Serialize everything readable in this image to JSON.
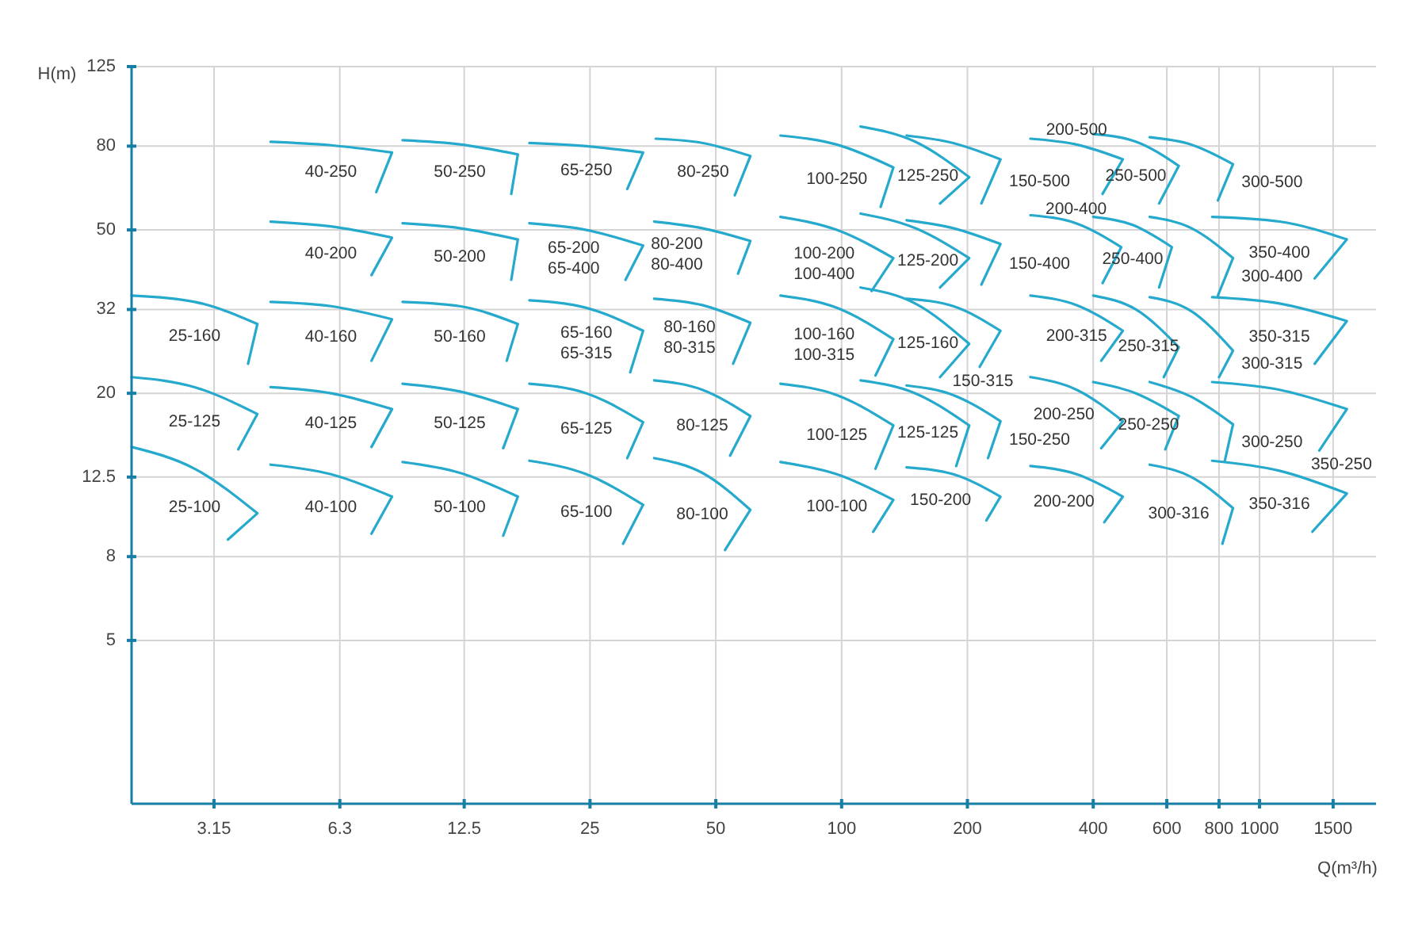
{
  "chart_data": {
    "type": "line",
    "xlabel": "Q(m³/h)",
    "ylabel": "H(m)",
    "log": "xy",
    "grid": true,
    "color": "#25a9cc",
    "xlim": [
      2,
      1900
    ],
    "xticks": [
      3.15,
      6.3,
      12.5,
      25,
      50,
      100,
      200,
      400,
      600,
      800,
      1000,
      1500
    ],
    "ylim": [
      2,
      125
    ],
    "yticks": [
      5,
      8,
      12.5,
      20,
      32,
      50,
      80,
      125
    ],
    "series": [
      {
        "name": "40-250",
        "x": [
          4.3,
          6.0,
          8.4,
          7.7
        ],
        "values": [
          82.0,
          80.4,
          77.2,
          61.8
        ]
      },
      {
        "name": "50-250",
        "x": [
          8.9,
          12.2,
          16.8,
          16.2
        ],
        "values": [
          82.7,
          80.8,
          76.4,
          61.2
        ]
      },
      {
        "name": "65-250",
        "x": [
          17.9,
          24.5,
          33.5,
          30.7
        ],
        "values": [
          81.4,
          80,
          77.2,
          62.9
        ]
      },
      {
        "name": "80-250",
        "x": [
          35.9,
          46.6,
          60.5,
          55.5
        ],
        "values": [
          83.4,
          81.4,
          75.7,
          60.7
        ]
      },
      {
        "name": "100-250",
        "x": [
          71.4,
          97.4,
          133,
          124
        ],
        "values": [
          84.9,
          80.7,
          71.0,
          56.9
        ]
      },
      {
        "name": "125-250",
        "x": [
          111,
          150,
          202,
          172
        ],
        "values": [
          89.3,
          82.0,
          67.2,
          58.0
        ]
      },
      {
        "name": "150-500",
        "x": [
          143,
          185,
          240,
          216
        ],
        "values": [
          84.9,
          81.4,
          74.3,
          58.0
        ]
      },
      {
        "name": "200-500",
        "x": [
          283,
          365,
          471,
          421
        ],
        "values": [
          83.4,
          80.7,
          74.3,
          61.2
        ]
      },
      {
        "name": "250-500",
        "x": [
          400,
          506,
          641,
          575
        ],
        "values": [
          85.6,
          82.0,
          71.6,
          58.0
        ]
      },
      {
        "name": "300-500",
        "x": [
          546,
          687,
          864,
          795
        ],
        "values": [
          84.1,
          80.7,
          72.3,
          59.0
        ]
      },
      {
        "name": "40-200",
        "x": [
          4.3,
          6.0,
          8.4,
          7.5
        ],
        "values": [
          52.4,
          51.0,
          47.9,
          38.8
        ]
      },
      {
        "name": "50-200",
        "x": [
          8.9,
          12.2,
          16.8,
          16.2
        ],
        "values": [
          51.9,
          50.5,
          47.4,
          37.8
        ]
      },
      {
        "name": "65-200\n65-400",
        "x": [
          17.9,
          24.5,
          33.5,
          30.4
        ],
        "values": [
          51.9,
          50,
          45.8,
          37.8
        ]
      },
      {
        "name": "80-200\n80-400",
        "x": [
          35.6,
          46.4,
          60.5,
          56.5
        ],
        "values": [
          52.4,
          50.5,
          47.0,
          39.1
        ]
      },
      {
        "name": "100-200\n100-400",
        "x": [
          71.4,
          97.4,
          133,
          118
        ],
        "values": [
          53.8,
          50,
          42.7,
          35.5
        ]
      },
      {
        "name": "125-200",
        "x": [
          111,
          150,
          202,
          172
        ],
        "values": [
          54.8,
          50.5,
          42.7,
          36.2
        ]
      },
      {
        "name": "150-400",
        "x": [
          143,
          185,
          240,
          216
        ],
        "values": [
          52.8,
          50.5,
          46.2,
          36.8
        ]
      },
      {
        "name": "200-400",
        "x": [
          283,
          364,
          467,
          421
        ],
        "values": [
          54.3,
          51.9,
          45.4,
          37.1
        ]
      },
      {
        "name": "250-400",
        "x": [
          400,
          497,
          617,
          575
        ],
        "values": [
          53.8,
          51.4,
          45.4,
          36.2
        ]
      },
      {
        "name": "300-400",
        "x": [
          546,
          687,
          864,
          795
        ],
        "values": [
          53.8,
          50.5,
          42.7,
          34.6
        ]
      },
      {
        "name": "350-400",
        "x": [
          770,
          1116,
          1618,
          1355
        ],
        "values": [
          53.8,
          52.4,
          47.4,
          38.1
        ]
      },
      {
        "name": "25-160",
        "x": [
          2.0,
          2.83,
          4.0,
          3.8
        ],
        "values": [
          34.6,
          33.4,
          29.5,
          23.6
        ]
      },
      {
        "name": "40-160",
        "x": [
          4.3,
          6.0,
          8.4,
          7.5
        ],
        "values": [
          33.4,
          32.6,
          30.3,
          24.0
        ]
      },
      {
        "name": "50-160",
        "x": [
          8.9,
          12.2,
          16.8,
          15.8
        ],
        "values": [
          33.4,
          32.6,
          29.5,
          24.0
        ]
      },
      {
        "name": "65-160\n65-315",
        "x": [
          17.9,
          24.5,
          33.5,
          31.2
        ],
        "values": [
          33.7,
          32.3,
          28.4,
          22.5
        ]
      },
      {
        "name": "80-160\n80-315",
        "x": [
          35.6,
          46.4,
          60.5,
          55
        ],
        "values": [
          34.0,
          32.8,
          29.7,
          23.6
        ]
      },
      {
        "name": "100-160\n100-315",
        "x": [
          71.4,
          97.4,
          133,
          120.5
        ],
        "values": [
          34.6,
          32.3,
          27.1,
          22.1
        ]
      },
      {
        "name": "125-160",
        "x": [
          111,
          150,
          202,
          172
        ],
        "values": [
          36.2,
          33.1,
          26.4,
          21.9
        ]
      },
      {
        "name": "150-315",
        "x": [
          143,
          185,
          240,
          214
        ],
        "values": [
          34.0,
          32.6,
          28.4,
          23.2
        ]
      },
      {
        "name": "200-315",
        "x": [
          283,
          365,
          471,
          418
        ],
        "values": [
          34.6,
          32.8,
          28.4,
          24.0
        ]
      },
      {
        "name": "250-315",
        "x": [
          400,
          506,
          641,
          590
        ],
        "values": [
          34.6,
          32,
          25.9,
          21.9
        ]
      },
      {
        "name": "300-315",
        "x": [
          546,
          687,
          864,
          800
        ],
        "values": [
          34.3,
          31.7,
          25.4,
          21.9
        ]
      },
      {
        "name": "350-315",
        "x": [
          770,
          1116,
          1618,
          1355
        ],
        "values": [
          34.3,
          33.1,
          30.0,
          23.6
        ]
      },
      {
        "name": "25-125",
        "x": [
          2.0,
          2.83,
          4.0,
          3.6
        ],
        "values": [
          21.9,
          20.7,
          17.8,
          14.6
        ]
      },
      {
        "name": "40-125",
        "x": [
          4.3,
          6.0,
          8.4,
          7.5
        ],
        "values": [
          20.7,
          20,
          18.3,
          14.8
        ]
      },
      {
        "name": "50-125",
        "x": [
          8.9,
          12.2,
          16.8,
          15.5
        ],
        "values": [
          21.1,
          20.2,
          18.3,
          14.7
        ]
      },
      {
        "name": "65-125",
        "x": [
          17.9,
          24.5,
          33.5,
          30.7
        ],
        "values": [
          21.1,
          20,
          17.0,
          13.9
        ]
      },
      {
        "name": "80-125",
        "x": [
          35.6,
          46.4,
          60.5,
          54.1
        ],
        "values": [
          21.5,
          20.4,
          17.6,
          14.1
        ]
      },
      {
        "name": "100-125",
        "x": [
          71.4,
          97.4,
          133,
          120.5
        ],
        "values": [
          21.1,
          19.8,
          16.7,
          13.1
        ]
      },
      {
        "name": "125-125",
        "x": [
          111,
          150,
          202,
          188
        ],
        "values": [
          21.5,
          20,
          16.7,
          13.3
        ]
      },
      {
        "name": "150-250",
        "x": [
          143,
          185,
          240,
          224
        ],
        "values": [
          20.9,
          19.8,
          17.1,
          13.9
        ]
      },
      {
        "name": "200-250",
        "x": [
          283,
          365,
          471,
          418
        ],
        "values": [
          21.9,
          20.4,
          17.1,
          14.7
        ]
      },
      {
        "name": "250-250",
        "x": [
          400,
          506,
          641,
          595
        ],
        "values": [
          21.3,
          20,
          17.6,
          14.6
        ]
      },
      {
        "name": "300-250",
        "x": [
          546,
          687,
          864,
          826
        ],
        "values": [
          21.3,
          19.6,
          16.8,
          13.7
        ]
      },
      {
        "name": "350-250",
        "x": [
          770,
          1116,
          1618,
          1390
        ],
        "values": [
          21.3,
          20.4,
          18.3,
          14.5
        ]
      },
      {
        "name": "25-100",
        "x": [
          2.0,
          2.83,
          4.0,
          3.4
        ],
        "values": [
          14.8,
          13.1,
          10.2,
          8.8
        ]
      },
      {
        "name": "40-100",
        "x": [
          4.3,
          6.0,
          8.4,
          7.5
        ],
        "values": [
          13.4,
          12.7,
          11.2,
          9.1
        ]
      },
      {
        "name": "50-100",
        "x": [
          8.9,
          12.2,
          16.8,
          15.5
        ],
        "values": [
          13.6,
          12.8,
          11.2,
          9.0
        ]
      },
      {
        "name": "65-100",
        "x": [
          17.9,
          24.5,
          33.5,
          30
        ],
        "values": [
          13.7,
          12.7,
          10.7,
          8.6
        ]
      },
      {
        "name": "80-100",
        "x": [
          35.6,
          46.4,
          60.5,
          52.6
        ],
        "values": [
          13.9,
          12.8,
          10.4,
          8.3
        ]
      },
      {
        "name": "100-100",
        "x": [
          71.4,
          97.4,
          133,
          119
        ],
        "values": [
          13.6,
          12.7,
          11.0,
          9.2
        ]
      },
      {
        "name": "150-200",
        "x": [
          143,
          185,
          240,
          222
        ],
        "values": [
          13.2,
          12.7,
          11.2,
          9.8
        ]
      },
      {
        "name": "200-200",
        "x": [
          283,
          365,
          471,
          425
        ],
        "values": [
          13.3,
          12.7,
          11.2,
          9.7
        ]
      },
      {
        "name": "300-316",
        "x": [
          546,
          687,
          864,
          815
        ],
        "values": [
          13.4,
          12.5,
          10.5,
          8.6
        ]
      },
      {
        "name": "350-316",
        "x": [
          770,
          1116,
          1618,
          1338
        ],
        "values": [
          13.7,
          12.95,
          11.4,
          9.2
        ]
      }
    ]
  }
}
